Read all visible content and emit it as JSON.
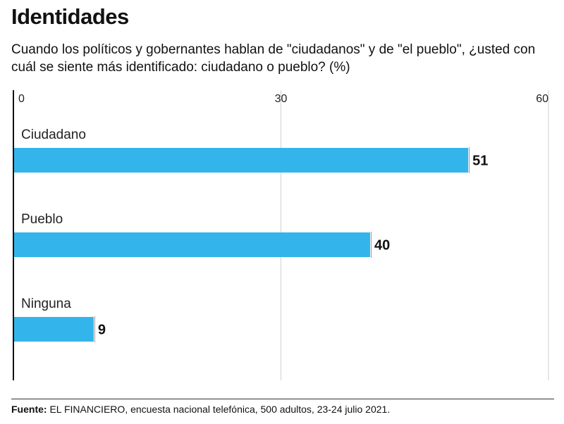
{
  "header": {
    "title": "Identidades",
    "subtitle": "Cuando los políticos y gobernantes hablan de \"ciudadanos\" y de \"el pueblo\", ¿usted con cuál se siente más identificado: ciudadano o pueblo? (%)"
  },
  "chart_data": {
    "type": "bar",
    "orientation": "horizontal",
    "title": "Identidades",
    "categories": [
      "Ciudadano",
      "Pueblo",
      "Ninguna"
    ],
    "values": [
      51,
      40,
      9
    ],
    "xlim": [
      0,
      60
    ],
    "xticks": [
      0,
      30,
      60
    ],
    "xlabel": "",
    "ylabel": "",
    "grid": true,
    "bar_color": "#33b5ec"
  },
  "footer": {
    "source_label": "Fuente:",
    "source_text": " EL FINANCIERO, encuesta nacional telefónica, 500 adultos, 23-24 julio 2021."
  }
}
